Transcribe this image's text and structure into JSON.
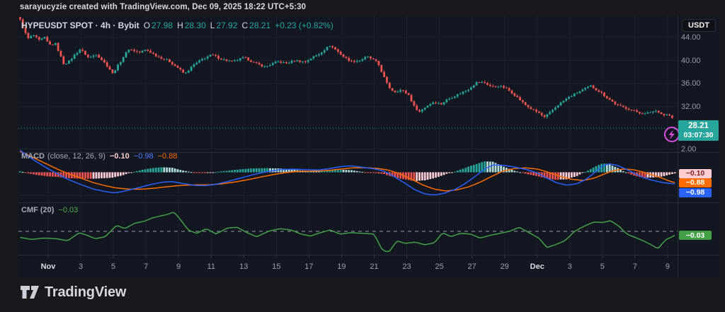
{
  "header": {
    "attribution": "sarayucyzie created with TradingView.com, Dec 09, 2025 18:22 UTC+5:30"
  },
  "symbol_bar": {
    "title": "HYPEUSDT SPOT · 4h · Bybit",
    "open_label": "O",
    "open_value": "27.98",
    "high_label": "H",
    "high_value": "28.30",
    "low_label": "L",
    "low_value": "27.92",
    "close_label": "C",
    "close_value": "28.21",
    "change_value": "+0.23 (+0.82%)"
  },
  "price_axis": {
    "currency": "USDT",
    "labels": [
      {
        "text": "44.00",
        "pane": "price",
        "value": 44
      },
      {
        "text": "40.00",
        "pane": "price",
        "value": 40
      },
      {
        "text": "36.00",
        "pane": "price",
        "value": 36
      },
      {
        "text": "32.00",
        "pane": "price",
        "value": 32
      },
      {
        "text": "2.00",
        "pane": "macd",
        "value": 2
      }
    ],
    "last_price": "28.21",
    "countdown": "03:07:30"
  },
  "panes": {
    "macd": {
      "title": "MACD",
      "params": "(close, 12, 26, 9)",
      "hist_value": "−0.10",
      "macd_value": "−0.98",
      "signal_value": "−0.88"
    },
    "cmf": {
      "title": "CMF (20)",
      "value": "−0.03"
    }
  },
  "time_axis": {
    "labels": [
      "Nov",
      "3",
      "5",
      "7",
      "9",
      "11",
      "13",
      "15",
      "17",
      "19",
      "21",
      "23",
      "25",
      "27",
      "29",
      "Dec",
      "3",
      "5",
      "7",
      "9"
    ],
    "emphasized": [
      "Nov",
      "Dec"
    ]
  },
  "footer": {
    "logo_text": "TradingView"
  },
  "colors": {
    "up": "#26a69a",
    "down": "#ef5350",
    "macd_line": "#2962ff",
    "signal_line": "#ff6d00",
    "hist_grow_above": "#26a69a",
    "hist_fall_above": "#b2dfdb",
    "hist_grow_below": "#ffcdd2",
    "hist_fall_below": "#ef5350",
    "cmf_line": "#43a047",
    "price_badge_bg": "#26a69a",
    "hist_badge_bg": "#ffcdd2",
    "hist_badge_fg": "#7f1d24",
    "signal_badge_bg": "#ff6d00",
    "signal_badge_fg": "#ffffff",
    "macd_badge_bg": "#2962ff",
    "macd_badge_fg": "#ffffff",
    "cmf_badge_bg": "#43a047",
    "cmf_badge_fg": "#ffffff",
    "marker": "#d94fe0"
  },
  "chart_data": {
    "type": "candlestick+indicators",
    "symbol": "HYPEUSDT",
    "interval": "4h",
    "exchange": "Bybit",
    "legend": [
      "price candles",
      "MACD(12,26,9)",
      "CMF(20)"
    ],
    "price_axis_ticks": [
      44,
      40,
      36,
      32
    ],
    "current_price": 28.21,
    "last_candle": {
      "open": 27.98,
      "high": 28.3,
      "low": 27.92,
      "close": 28.21
    },
    "x_domain_days": [
      -1.72,
      38.45
    ],
    "x_tick_labels": [
      "Nov",
      "3",
      "5",
      "7",
      "9",
      "11",
      "13",
      "15",
      "17",
      "19",
      "21",
      "23",
      "25",
      "27",
      "29",
      "Dec",
      "3",
      "5",
      "7",
      "9"
    ],
    "x_tick_day_values": [
      0,
      2,
      4,
      6,
      8,
      10,
      12,
      14,
      16,
      18,
      20,
      22,
      24,
      26,
      28,
      30,
      32,
      34,
      36,
      38
    ],
    "close_path": [
      [
        -1.74,
        47.2
      ],
      [
        -1.5,
        45.4
      ],
      [
        -1.25,
        43.8
      ],
      [
        -0.9,
        44.4
      ],
      [
        -0.55,
        43.5
      ],
      [
        -0.2,
        44.0
      ],
      [
        0.05,
        42.7
      ],
      [
        0.45,
        42.9
      ],
      [
        0.97,
        39.3
      ],
      [
        1.3,
        39.9
      ],
      [
        1.63,
        41.0
      ],
      [
        1.98,
        42.0
      ],
      [
        2.5,
        40.4
      ],
      [
        2.95,
        41.1
      ],
      [
        3.4,
        39.8
      ],
      [
        3.75,
        38.6
      ],
      [
        3.96,
        37.7
      ],
      [
        4.2,
        38.8
      ],
      [
        4.5,
        40.1
      ],
      [
        4.93,
        42.0
      ],
      [
        5.6,
        41.4
      ],
      [
        6.0,
        41.9
      ],
      [
        6.7,
        40.7
      ],
      [
        7.36,
        40.0
      ],
      [
        8.02,
        38.6
      ],
      [
        8.37,
        37.6
      ],
      [
        8.9,
        39.2
      ],
      [
        9.56,
        40.4
      ],
      [
        10.04,
        41.0
      ],
      [
        10.66,
        40.2
      ],
      [
        11.32,
        39.8
      ],
      [
        12.03,
        40.5
      ],
      [
        12.64,
        39.6
      ],
      [
        13.3,
        38.9
      ],
      [
        14.1,
        39.8
      ],
      [
        14.63,
        39.5
      ],
      [
        15.15,
        40.0
      ],
      [
        15.73,
        39.7
      ],
      [
        16.12,
        40.4
      ],
      [
        16.6,
        41.1
      ],
      [
        17.27,
        42.6
      ],
      [
        17.55,
        42.1
      ],
      [
        18.15,
        40.6
      ],
      [
        18.6,
        39.8
      ],
      [
        19.12,
        40.0
      ],
      [
        19.56,
        40.7
      ],
      [
        19.91,
        40.2
      ],
      [
        20.22,
        39.6
      ],
      [
        20.57,
        37.3
      ],
      [
        20.88,
        35.4
      ],
      [
        21.23,
        34.5
      ],
      [
        21.67,
        34.9
      ],
      [
        22.11,
        34.0
      ],
      [
        22.47,
        31.9
      ],
      [
        22.78,
        31.1
      ],
      [
        23.22,
        32.1
      ],
      [
        23.66,
        32.8
      ],
      [
        24.1,
        32.4
      ],
      [
        24.41,
        33.1
      ],
      [
        24.85,
        33.7
      ],
      [
        25.29,
        34.3
      ],
      [
        25.73,
        34.9
      ],
      [
        26.08,
        35.7
      ],
      [
        26.34,
        36.3
      ],
      [
        26.78,
        36.1
      ],
      [
        27.22,
        35.4
      ],
      [
        27.66,
        35.6
      ],
      [
        28.11,
        35.1
      ],
      [
        28.41,
        34.5
      ],
      [
        28.81,
        33.5
      ],
      [
        29.21,
        32.4
      ],
      [
        29.65,
        31.5
      ],
      [
        30.09,
        30.9
      ],
      [
        30.44,
        30.1
      ],
      [
        30.88,
        31.2
      ],
      [
        31.32,
        32.4
      ],
      [
        31.76,
        33.3
      ],
      [
        32.2,
        34.0
      ],
      [
        32.51,
        34.5
      ],
      [
        32.95,
        35.1
      ],
      [
        33.26,
        35.6
      ],
      [
        33.57,
        35.0
      ],
      [
        33.92,
        34.4
      ],
      [
        34.23,
        33.6
      ],
      [
        34.54,
        33.0
      ],
      [
        34.89,
        32.2
      ],
      [
        35.24,
        31.9
      ],
      [
        35.59,
        31.6
      ],
      [
        35.95,
        31.2
      ],
      [
        36.3,
        30.9
      ],
      [
        36.65,
        30.7
      ],
      [
        37.0,
        31.1
      ],
      [
        37.36,
        31.3
      ],
      [
        37.71,
        30.5
      ],
      [
        38.06,
        30.6
      ],
      [
        38.3,
        29.9
      ],
      [
        38.45,
        29.3
      ]
    ],
    "macd": {
      "scale_top_label": 2.0,
      "last": {
        "macd": -0.98,
        "signal": -0.88,
        "hist": -0.1
      },
      "macd_path": [
        [
          -1.74,
          1.9
        ],
        [
          -1.2,
          1.35
        ],
        [
          -0.6,
          0.8
        ],
        [
          0,
          0.3
        ],
        [
          0.6,
          -0.15
        ],
        [
          1.2,
          -0.6
        ],
        [
          2,
          -1.05
        ],
        [
          2.8,
          -1.45
        ],
        [
          3.5,
          -1.65
        ],
        [
          4,
          -1.75
        ],
        [
          4.5,
          -1.68
        ],
        [
          5,
          -1.5
        ],
        [
          5.6,
          -1.3
        ],
        [
          6.3,
          -1.05
        ],
        [
          7,
          -0.85
        ],
        [
          7.6,
          -0.8
        ],
        [
          8.2,
          -0.95
        ],
        [
          9,
          -1.12
        ],
        [
          9.6,
          -1.15
        ],
        [
          10.2,
          -1.05
        ],
        [
          11,
          -0.8
        ],
        [
          11.8,
          -0.5
        ],
        [
          12.6,
          -0.2
        ],
        [
          13.4,
          0.05
        ],
        [
          14.2,
          0.22
        ],
        [
          15,
          0.27
        ],
        [
          15.8,
          0.22
        ],
        [
          16.6,
          0.2
        ],
        [
          17.3,
          0.32
        ],
        [
          18,
          0.5
        ],
        [
          18.6,
          0.55
        ],
        [
          19.3,
          0.42
        ],
        [
          20,
          0.3
        ],
        [
          20.6,
          0.1
        ],
        [
          21.2,
          -0.35
        ],
        [
          21.9,
          -0.95
        ],
        [
          22.5,
          -1.5
        ],
        [
          23.1,
          -1.85
        ],
        [
          23.7,
          -1.95
        ],
        [
          24.3,
          -1.8
        ],
        [
          25,
          -1.45
        ],
        [
          25.6,
          -0.95
        ],
        [
          26.2,
          -0.35
        ],
        [
          26.8,
          0.3
        ],
        [
          27.3,
          0.62
        ],
        [
          27.9,
          0.6
        ],
        [
          28.6,
          0.45
        ],
        [
          29.3,
          0.25
        ],
        [
          30,
          -0.05
        ],
        [
          30.6,
          -0.5
        ],
        [
          31.2,
          -0.9
        ],
        [
          31.8,
          -1.1
        ],
        [
          32.4,
          -1.0
        ],
        [
          33,
          -0.6
        ],
        [
          33.5,
          -0.05
        ],
        [
          34,
          0.55
        ],
        [
          34.4,
          0.72
        ],
        [
          34.9,
          0.6
        ],
        [
          35.4,
          0.3
        ],
        [
          35.9,
          -0.05
        ],
        [
          36.5,
          -0.45
        ],
        [
          37.1,
          -0.7
        ],
        [
          37.7,
          -0.88
        ],
        [
          38.2,
          -0.97
        ],
        [
          38.45,
          -0.98
        ]
      ],
      "signal_path": [
        [
          -1.74,
          1.8
        ],
        [
          -1.2,
          1.45
        ],
        [
          -0.6,
          1.05
        ],
        [
          0,
          0.65
        ],
        [
          0.6,
          0.25
        ],
        [
          1.2,
          -0.1
        ],
        [
          2,
          -0.5
        ],
        [
          2.8,
          -0.9
        ],
        [
          3.5,
          -1.15
        ],
        [
          4.2,
          -1.35
        ],
        [
          5,
          -1.45
        ],
        [
          5.8,
          -1.45
        ],
        [
          6.6,
          -1.35
        ],
        [
          7.4,
          -1.22
        ],
        [
          8.2,
          -1.12
        ],
        [
          9,
          -1.08
        ],
        [
          9.8,
          -1.08
        ],
        [
          10.6,
          -1.0
        ],
        [
          11.4,
          -0.85
        ],
        [
          12.2,
          -0.65
        ],
        [
          13,
          -0.42
        ],
        [
          13.8,
          -0.2
        ],
        [
          14.6,
          -0.02
        ],
        [
          15.4,
          0.08
        ],
        [
          16.2,
          0.1
        ],
        [
          17,
          0.14
        ],
        [
          17.8,
          0.25
        ],
        [
          18.6,
          0.37
        ],
        [
          19.4,
          0.4
        ],
        [
          20.2,
          0.33
        ],
        [
          20.9,
          0.18
        ],
        [
          21.6,
          -0.15
        ],
        [
          22.3,
          -0.6
        ],
        [
          23,
          -1.1
        ],
        [
          23.7,
          -1.45
        ],
        [
          24.4,
          -1.6
        ],
        [
          25.1,
          -1.5
        ],
        [
          25.8,
          -1.25
        ],
        [
          26.5,
          -0.85
        ],
        [
          27.2,
          -0.35
        ],
        [
          27.9,
          0.1
        ],
        [
          28.6,
          0.32
        ],
        [
          29.3,
          0.38
        ],
        [
          30,
          0.28
        ],
        [
          30.7,
          0.0
        ],
        [
          31.4,
          -0.35
        ],
        [
          32.1,
          -0.6
        ],
        [
          32.8,
          -0.7
        ],
        [
          33.5,
          -0.5
        ],
        [
          34.1,
          -0.15
        ],
        [
          34.7,
          0.15
        ],
        [
          35.3,
          0.28
        ],
        [
          35.9,
          0.22
        ],
        [
          36.5,
          0.02
        ],
        [
          37.1,
          -0.25
        ],
        [
          37.7,
          -0.52
        ],
        [
          38.2,
          -0.8
        ],
        [
          38.45,
          -0.88
        ]
      ]
    },
    "cmf": {
      "last": -0.03,
      "path": [
        [
          -1.74,
          -0.045
        ],
        [
          -1,
          -0.06
        ],
        [
          -0.3,
          -0.05
        ],
        [
          0.5,
          -0.055
        ],
        [
          1.2,
          -0.07
        ],
        [
          1.9,
          -0.01
        ],
        [
          2.4,
          -0.03
        ],
        [
          2.9,
          -0.055
        ],
        [
          3.5,
          -0.04
        ],
        [
          4.2,
          0.045
        ],
        [
          4.7,
          0.02
        ],
        [
          5.3,
          0.06
        ],
        [
          5.9,
          0.075
        ],
        [
          6.4,
          0.1
        ],
        [
          6.9,
          0.115
        ],
        [
          7.3,
          0.125
        ],
        [
          7.7,
          0.145
        ],
        [
          8.1,
          0.09
        ],
        [
          8.6,
          0.01
        ],
        [
          9.1,
          -0.015
        ],
        [
          9.7,
          0.02
        ],
        [
          10.3,
          -0.02
        ],
        [
          11,
          0.025
        ],
        [
          11.6,
          0.03
        ],
        [
          12.2,
          -0.01
        ],
        [
          12.8,
          -0.04
        ],
        [
          13.5,
          0.0
        ],
        [
          14.2,
          0.02
        ],
        [
          14.9,
          0.01
        ],
        [
          15.5,
          -0.02
        ],
        [
          16.1,
          -0.035
        ],
        [
          16.7,
          -0.01
        ],
        [
          17.3,
          0.01
        ],
        [
          17.9,
          -0.02
        ],
        [
          18.6,
          -0.01
        ],
        [
          19.3,
          -0.015
        ],
        [
          20,
          -0.02
        ],
        [
          20.5,
          -0.14
        ],
        [
          20.9,
          -0.155
        ],
        [
          21.4,
          -0.07
        ],
        [
          21.9,
          -0.09
        ],
        [
          22.5,
          -0.08
        ],
        [
          23.1,
          -0.1
        ],
        [
          23.7,
          -0.085
        ],
        [
          24.2,
          -0.01
        ],
        [
          24.7,
          -0.04
        ],
        [
          25.3,
          -0.015
        ],
        [
          25.9,
          -0.02
        ],
        [
          26.5,
          -0.05
        ],
        [
          27.1,
          -0.03
        ],
        [
          27.7,
          -0.015
        ],
        [
          28.3,
          0.0
        ],
        [
          28.9,
          0.03
        ],
        [
          29.5,
          -0.01
        ],
        [
          30.1,
          -0.05
        ],
        [
          30.6,
          -0.12
        ],
        [
          31.1,
          -0.1
        ],
        [
          31.7,
          -0.07
        ],
        [
          32.3,
          0.0
        ],
        [
          32.9,
          0.04
        ],
        [
          33.5,
          0.07
        ],
        [
          34,
          0.065
        ],
        [
          34.5,
          0.08
        ],
        [
          35,
          0.04
        ],
        [
          35.5,
          -0.02
        ],
        [
          36,
          -0.045
        ],
        [
          36.5,
          -0.07
        ],
        [
          37,
          -0.1
        ],
        [
          37.4,
          -0.13
        ],
        [
          37.9,
          -0.06
        ],
        [
          38.2,
          -0.045
        ],
        [
          38.45,
          -0.03
        ]
      ]
    }
  }
}
